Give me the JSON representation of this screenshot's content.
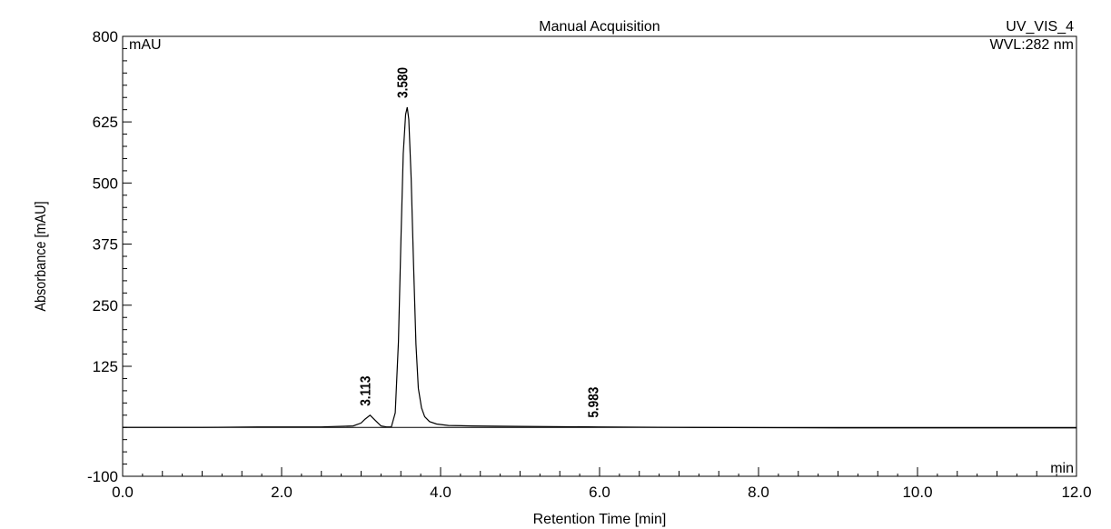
{
  "chart_data": {
    "type": "line",
    "title": "Manual Acquisition",
    "channel": "UV_VIS_4",
    "wavelength": "WVL:282 nm",
    "xlabel": "Retention Time [min]",
    "ylabel": "Absorbance [mAU]",
    "y_unit": "mAU",
    "x_unit": "min",
    "xlim": [
      0,
      12
    ],
    "ylim": [
      -100,
      800
    ],
    "x_ticks": [
      "0.0",
      "2.0",
      "4.0",
      "6.0",
      "8.0",
      "10.0",
      "12.0"
    ],
    "y_ticks": [
      "-100",
      "125",
      "250",
      "375",
      "500",
      "625",
      "800"
    ],
    "y_tick_values": [
      -100,
      125,
      250,
      375,
      500,
      625,
      800
    ],
    "x_tick_values": [
      0,
      2,
      4,
      6,
      8,
      10,
      12
    ],
    "baseline": 0,
    "peaks": [
      {
        "label": "3.113",
        "rt": 3.113,
        "height": 25
      },
      {
        "label": "3.580",
        "rt": 3.58,
        "height": 655
      },
      {
        "label": "5.983",
        "rt": 5.983,
        "height": 1
      }
    ],
    "series": [
      {
        "x": [
          0.0,
          1.0,
          1.7,
          2.5,
          2.9,
          3.0,
          3.05,
          3.113,
          3.18,
          3.25,
          3.32,
          3.38,
          3.43,
          3.47,
          3.5,
          3.53,
          3.56,
          3.58,
          3.6,
          3.63,
          3.66,
          3.69,
          3.72,
          3.76,
          3.8,
          3.86,
          3.95,
          4.1,
          4.4,
          5.0,
          5.983,
          7.0,
          9.0,
          12.0
        ],
        "y": [
          0,
          0,
          1,
          1,
          3,
          9,
          17,
          25,
          14,
          3,
          1,
          1,
          30,
          175,
          380,
          560,
          640,
          655,
          630,
          510,
          330,
          170,
          80,
          40,
          22,
          12,
          7,
          4,
          3,
          2,
          1,
          0,
          -1,
          -1
        ]
      }
    ]
  }
}
